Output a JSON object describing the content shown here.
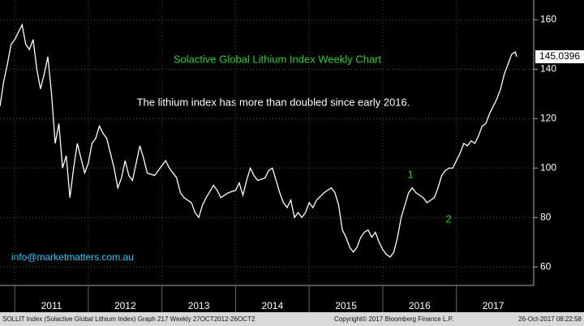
{
  "chart_data": {
    "type": "line",
    "title": "Solactive Global Lithium Index Weekly Chart",
    "subtitle": "The lithium index has more than doubled since early 2016.",
    "annotations": [
      "1",
      "2",
      "info@marketmatters.com.au"
    ],
    "footer": [
      "SOLLIT Index (Solactive Global Lithium Index) Graph 217  Weekly 27OCT2012-26OCT2",
      "Copyright© 2017 Bloomberg Finance L.P.",
      "26-Oct-2017 08:22:58"
    ],
    "color": "#ffffff",
    "xlim": [
      2010.8,
      2018.05
    ],
    "xticks": [
      {
        "value": 2011,
        "label": "2011"
      },
      {
        "value": 2012,
        "label": "2012"
      },
      {
        "value": 2013,
        "label": "2013"
      },
      {
        "value": 2014,
        "label": "2014"
      },
      {
        "value": 2015,
        "label": "2015"
      },
      {
        "value": 2016,
        "label": "2016"
      },
      {
        "value": 2017,
        "label": "2017"
      }
    ],
    "ylim": [
      52.5,
      168
    ],
    "yticks": [
      60,
      80,
      100,
      120,
      140,
      160
    ],
    "grid": true,
    "x": [
      2010.8,
      2010.85,
      2010.9,
      2010.95,
      2011.0,
      2011.05,
      2011.1,
      2011.15,
      2011.2,
      2011.25,
      2011.3,
      2011.35,
      2011.4,
      2011.45,
      2011.5,
      2011.55,
      2011.6,
      2011.65,
      2011.7,
      2011.75,
      2011.8,
      2011.85,
      2011.9,
      2011.95,
      2012.0,
      2012.05,
      2012.1,
      2012.15,
      2012.2,
      2012.25,
      2012.3,
      2012.35,
      2012.4,
      2012.45,
      2012.5,
      2012.55,
      2012.6,
      2012.65,
      2012.7,
      2012.75,
      2012.8,
      2012.9,
      2013.0,
      2013.05,
      2013.1,
      2013.2,
      2013.25,
      2013.3,
      2013.4,
      2013.45,
      2013.5,
      2013.55,
      2013.6,
      2013.7,
      2013.75,
      2013.8,
      2013.9,
      2014.0,
      2014.05,
      2014.1,
      2014.15,
      2014.2,
      2014.25,
      2014.3,
      2014.4,
      2014.45,
      2014.5,
      2014.55,
      2014.6,
      2014.65,
      2014.7,
      2014.75,
      2014.8,
      2014.85,
      2014.9,
      2014.95,
      2015.0,
      2015.05,
      2015.1,
      2015.2,
      2015.3,
      2015.35,
      2015.4,
      2015.45,
      2015.5,
      2015.55,
      2015.6,
      2015.65,
      2015.7,
      2015.75,
      2015.8,
      2015.85,
      2015.9,
      2015.95,
      2016.0,
      2016.05,
      2016.1,
      2016.15,
      2016.2,
      2016.25,
      2016.3,
      2016.35,
      2016.4,
      2016.45,
      2016.5,
      2016.55,
      2016.6,
      2016.65,
      2016.7,
      2016.75,
      2016.8,
      2016.85,
      2016.9,
      2016.95,
      2017.0,
      2017.05,
      2017.1,
      2017.15,
      2017.2,
      2017.25,
      2017.3,
      2017.35,
      2017.4,
      2017.45,
      2017.5,
      2017.55,
      2017.6,
      2017.65,
      2017.7,
      2017.75,
      2017.8,
      2017.82
    ],
    "values": [
      125,
      135,
      142,
      150,
      152,
      155,
      158,
      150,
      148,
      152,
      140,
      132,
      138,
      145,
      130,
      110,
      118,
      100,
      105,
      88,
      100,
      110,
      104,
      98,
      102,
      110,
      112,
      117,
      114,
      112,
      106,
      100,
      92,
      96,
      103,
      97,
      95,
      102,
      109,
      104,
      98,
      97,
      101,
      103,
      100,
      96,
      90,
      88,
      86,
      82,
      80,
      85,
      88,
      93,
      91,
      88,
      90,
      91,
      94,
      89,
      95,
      100,
      97,
      95,
      96,
      99,
      100,
      95,
      90,
      86,
      84,
      87,
      80,
      82,
      80,
      82,
      86,
      84,
      87,
      90,
      92,
      90,
      85,
      75,
      72,
      68,
      66,
      68,
      72,
      74,
      75,
      72,
      74,
      70,
      67,
      65,
      64,
      66,
      72,
      80,
      85,
      90,
      92,
      90,
      89,
      88,
      86,
      87,
      88,
      92,
      97,
      99,
      100,
      100,
      103,
      106,
      110,
      109,
      111,
      110,
      113,
      117,
      118,
      122,
      125,
      128,
      132,
      138,
      142,
      146,
      147,
      145.0396
    ]
  }
}
